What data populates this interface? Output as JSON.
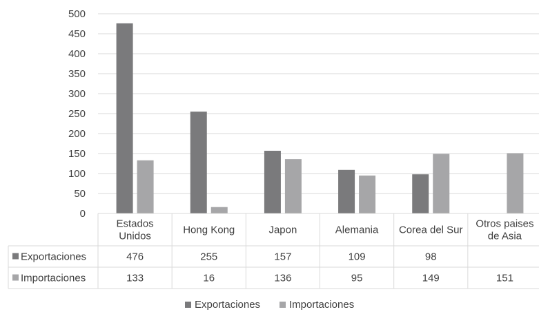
{
  "chart_data": {
    "type": "bar",
    "categories": [
      [
        "Estados",
        "Unidos"
      ],
      [
        "Hong Kong"
      ],
      [
        "Japon"
      ],
      [
        "Alemania"
      ],
      [
        "Corea del Sur"
      ],
      [
        "Otros paises",
        "de Asia"
      ]
    ],
    "series": [
      {
        "name": "Exportaciones",
        "color": "#7a7a7c",
        "values": [
          476,
          255,
          157,
          109,
          98,
          null
        ],
        "labels": [
          "476",
          "255",
          "157",
          "109",
          "98",
          ""
        ]
      },
      {
        "name": "Importaciones",
        "color": "#a6a6a8",
        "values": [
          133,
          16,
          136,
          95,
          149,
          151
        ],
        "labels": [
          "133",
          "16",
          "136",
          "95",
          "149",
          "151"
        ]
      }
    ],
    "ylim": [
      0,
      500
    ],
    "yticks": [
      0,
      50,
      100,
      150,
      200,
      250,
      300,
      350,
      400,
      450,
      500
    ],
    "grid": true,
    "legend": "bottom",
    "data_table": true
  }
}
